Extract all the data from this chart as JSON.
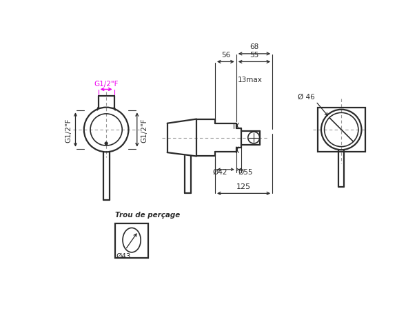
{
  "bg_color": "#ffffff",
  "line_color": "#2a2a2a",
  "dim_color": "#2a2a2a",
  "magenta_color": "#ee00ee",
  "dashed_color": "#999999",
  "annotations": {
    "g12f_top": "G1/2\"F",
    "g12f_left": "G1/2\"F",
    "g12f_right": "G1/2\"F",
    "dim_68": "68",
    "dim_56": "56",
    "dim_55": "55",
    "dim_13max": "13max",
    "dim_42": "Ø42",
    "dim_55b": "Ø55",
    "dim_125": "125",
    "dim_46": "Ø 46",
    "dim_43": "Ø43",
    "trou": "Trou de perçage"
  }
}
